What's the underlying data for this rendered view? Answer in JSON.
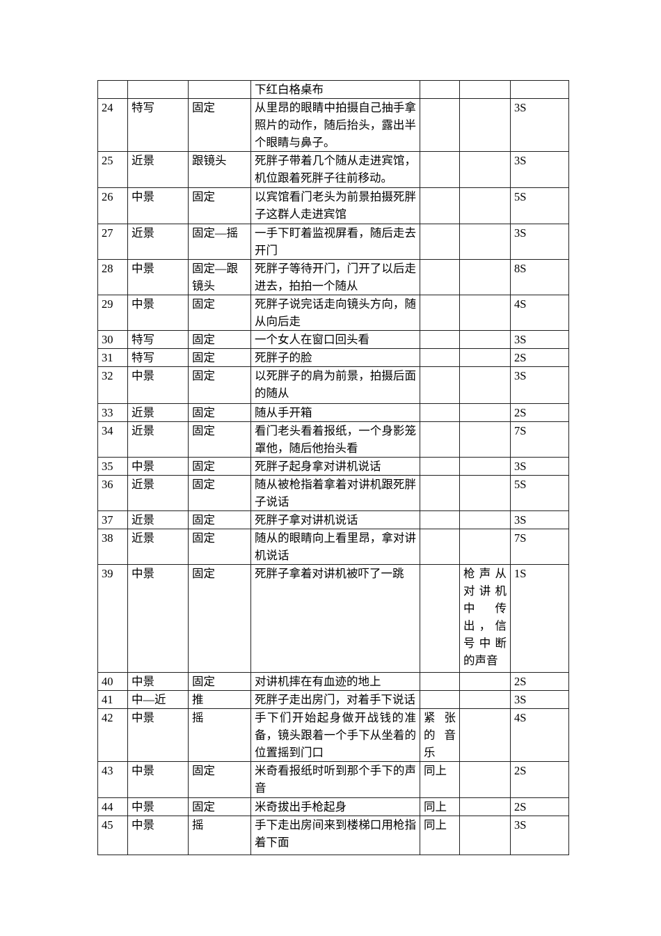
{
  "document": {
    "type": "storyboard-shot-list-page",
    "language": "zh-CN",
    "colors": {
      "page_background": "#ffffff",
      "text": "#000000",
      "table_border": "#1f1f1f"
    },
    "table": {
      "rows": [
        {
          "no": "",
          "size": "",
          "cam": "",
          "desc": "下红白格桌布",
          "music": "",
          "sfx": "",
          "dur": ""
        },
        {
          "no": "24",
          "size": "特写",
          "cam": "固定",
          "desc": "从里昂的眼睛中拍摄自己抽手拿照片的动作，随后抬头，露出半个眼睛与鼻子。",
          "music": "",
          "sfx": "",
          "dur": "3S"
        },
        {
          "no": "25",
          "size": "近景",
          "cam": "跟镜头",
          "desc": "死胖子带着几个随从走进宾馆，机位跟着死胖子往前移动。",
          "music": "",
          "sfx": "",
          "dur": "3S"
        },
        {
          "no": "26",
          "size": "中景",
          "cam": "固定",
          "desc": "以宾馆看门老头为前景拍摄死胖子这群人走进宾馆",
          "music": "",
          "sfx": "",
          "dur": "5S"
        },
        {
          "no": "27",
          "size": "近景",
          "cam": "固定—摇",
          "desc": "一手下盯着监视屏看，随后走去开门",
          "music": "",
          "sfx": "",
          "dur": "3S"
        },
        {
          "no": "28",
          "size": "中景",
          "cam": "固定—跟镜头",
          "desc": "死胖子等待开门，门开了以后走进去，拍拍一个随从",
          "music": "",
          "sfx": "",
          "dur": "8S"
        },
        {
          "no": "29",
          "size": "中景",
          "cam": "固定",
          "desc": "死胖子说完话走向镜头方向，随从向后走",
          "music": "",
          "sfx": "",
          "dur": "4S"
        },
        {
          "no": "30",
          "size": "特写",
          "cam": "固定",
          "desc": "一个女人在窗口回头看",
          "music": "",
          "sfx": "",
          "dur": "3S"
        },
        {
          "no": "31",
          "size": "特写",
          "cam": "固定",
          "desc": "死胖子的脸",
          "music": "",
          "sfx": "",
          "dur": "2S"
        },
        {
          "no": "32",
          "size": "中景",
          "cam": "固定",
          "desc": "以死胖子的肩为前景，拍摄后面的随从",
          "music": "",
          "sfx": "",
          "dur": "3S"
        },
        {
          "no": "33",
          "size": "近景",
          "cam": "固定",
          "desc": "随从手开箱",
          "music": "",
          "sfx": "",
          "dur": "2S"
        },
        {
          "no": "34",
          "size": "近景",
          "cam": "固定",
          "desc": "看门老头看着报纸，一个身影笼罩他，随后他抬头看",
          "music": "",
          "sfx": "",
          "dur": "7S"
        },
        {
          "no": "35",
          "size": "中景",
          "cam": "固定",
          "desc": "死胖子起身拿对讲机说话",
          "music": "",
          "sfx": "",
          "dur": "3S"
        },
        {
          "no": "36",
          "size": "近景",
          "cam": "固定",
          "desc": "随从被枪指着拿着对讲机跟死胖子说话",
          "music": "",
          "sfx": "",
          "dur": "5S"
        },
        {
          "no": "37",
          "size": "近景",
          "cam": "固定",
          "desc": "死胖子拿对讲机说话",
          "music": "",
          "sfx": "",
          "dur": "3S"
        },
        {
          "no": "38",
          "size": "近景",
          "cam": "固定",
          "desc": "随从的眼睛向上看里昂，拿对讲机说话",
          "music": "",
          "sfx": "",
          "dur": "7S"
        },
        {
          "no": "39",
          "size": "中景",
          "cam": "固定",
          "desc": "死胖子拿着对讲机被吓了一跳",
          "music": "",
          "sfx": "枪声从对讲机中传出，信号中断的声音",
          "dur": "1S"
        },
        {
          "no": "40",
          "size": "中景",
          "cam": "固定",
          "desc": "对讲机摔在有血迹的地上",
          "music": "",
          "sfx": "",
          "dur": "2S"
        },
        {
          "no": "41",
          "size": "中—近",
          "cam": "推",
          "desc": "死胖子走出房门，对着手下说话",
          "music": "",
          "sfx": "",
          "dur": "3S"
        },
        {
          "no": "42",
          "size": "中景",
          "cam": "摇",
          "desc": "手下们开始起身做开战钱的准备，镜头跟着一个手下从坐着的位置摇到门口",
          "music": "紧张的音乐",
          "sfx": "",
          "dur": "4S"
        },
        {
          "no": "43",
          "size": "中景",
          "cam": "固定",
          "desc": "米奇看报纸时听到那个手下的声音",
          "music": "同上",
          "sfx": "",
          "dur": "2S"
        },
        {
          "no": "44",
          "size": "中景",
          "cam": "固定",
          "desc": "米奇拔出手枪起身",
          "music": "同上",
          "sfx": "",
          "dur": "2S"
        },
        {
          "no": "45",
          "size": "中景",
          "cam": "摇",
          "desc": "手下走出房间来到楼梯口用枪指着下面",
          "music": "同上",
          "sfx": "",
          "dur": "3S"
        }
      ]
    }
  }
}
